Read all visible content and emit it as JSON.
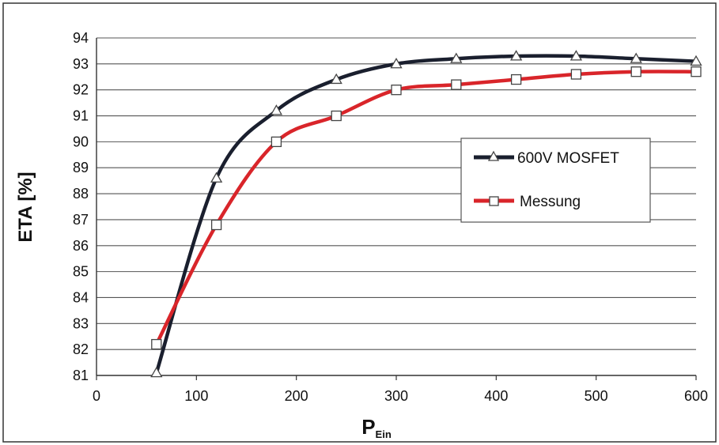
{
  "chart_data": {
    "type": "line",
    "ylabel": "ETA [%]",
    "xlabel_main": "P",
    "xlabel_sub": "Ein",
    "xlim": [
      0,
      600
    ],
    "ylim": [
      81,
      94
    ],
    "xticks": [
      0,
      100,
      200,
      300,
      400,
      500,
      600
    ],
    "yticks": [
      81,
      82,
      83,
      84,
      85,
      86,
      87,
      88,
      89,
      90,
      91,
      92,
      93,
      94
    ],
    "grid": "horizontal",
    "legend_placement": "right",
    "series": [
      {
        "name": "600V MOSFET",
        "color": "#1a1f2e",
        "marker": "triangle",
        "x": [
          60,
          120,
          180,
          240,
          300,
          360,
          420,
          480,
          540,
          600
        ],
        "y": [
          81.1,
          88.6,
          91.2,
          92.4,
          93.0,
          93.2,
          93.3,
          93.3,
          93.2,
          93.1
        ]
      },
      {
        "name": "Messung",
        "color": "#d9252a",
        "marker": "square",
        "x": [
          60,
          120,
          180,
          240,
          300,
          360,
          420,
          480,
          540,
          600
        ],
        "y": [
          82.2,
          86.8,
          90.0,
          91.0,
          92.0,
          92.2,
          92.4,
          92.6,
          92.7,
          92.7
        ]
      }
    ]
  }
}
